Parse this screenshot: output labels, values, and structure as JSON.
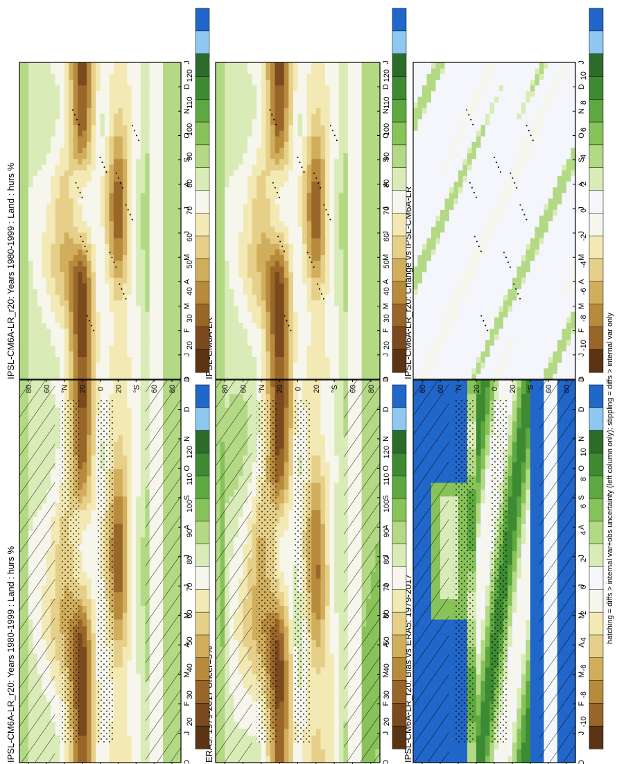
{
  "figure": {
    "footnote": "hatching = diffs > internal var+obs uncertainty (left column only); stippling = diffs > internal var only"
  },
  "colorbars": {
    "absolute": {
      "labels": [
        "120",
        "110",
        "100",
        "90",
        "80",
        "70",
        "60",
        "50",
        "40",
        "30",
        "20"
      ]
    },
    "difference": {
      "labels": [
        "10",
        "8",
        "6",
        "4",
        "2",
        "0",
        "-2",
        "-4",
        "-6",
        "-8",
        "-10"
      ]
    }
  },
  "colors": {
    "absolute": [
      "#2166c9",
      "#8ec8f0",
      "#2d6b2a",
      "#3e8a32",
      "#5da840",
      "#88c35a",
      "#b3d985",
      "#d9ecb8",
      "#f6f6ec",
      "#f3e9b4",
      "#e6d089",
      "#d1ae5c",
      "#b78a3c",
      "#99662a",
      "#7a4a1e",
      "#5a3414"
    ],
    "difference": [
      "#2166c9",
      "#8ec8f0",
      "#2d6b2a",
      "#3e8a32",
      "#5da840",
      "#88c35a",
      "#b3d985",
      "#d9ecb8",
      "#f4f6fb",
      "#f6f6ec",
      "#f3e9b4",
      "#e6d089",
      "#d1ae5c",
      "#b78a3c",
      "#99662a",
      "#5a3414"
    ]
  },
  "panels": [
    {
      "id": "model-left",
      "title": "IPSL-CM6A-LR_r20: Years 1980-1999 : Land : hurs %",
      "kind": "absolute",
      "hatching": true,
      "stippling": "dense"
    },
    {
      "id": "model-right",
      "title": "IPSL-CM6A-LR_r20: Years 1980-1999 : Land : hurs %",
      "kind": "absolute",
      "hatching": false,
      "stippling": "sparse"
    },
    {
      "id": "obs-left",
      "title": "ERA5: 1979-2017 Uncer=5%",
      "kind": "absolute",
      "hatching": true,
      "stippling": "dense"
    },
    {
      "id": "obs-right",
      "title": "IPSL-CM6A-LR",
      "kind": "absolute",
      "hatching": false,
      "stippling": "sparse"
    },
    {
      "id": "bias-left",
      "title": "IPSL-CM6A-LR_r20: Bias vs ERA5: 1979-2017",
      "kind": "difference",
      "hatching": true,
      "stippling": "dense"
    },
    {
      "id": "change-right",
      "title": "IPSL-CM6A-LR_r20: Change vs IPSL-CM6A-LR",
      "kind": "difference",
      "hatching": false,
      "stippling": "sparse"
    }
  ],
  "chart_data": {
    "type": "heatmap",
    "description_axes": {
      "month_ticks": [
        "D",
        "J",
        "F",
        "M",
        "A",
        "M",
        "J",
        "J",
        "A",
        "S",
        "O",
        "N",
        "D",
        "J"
      ],
      "lat_ticks": [
        "80",
        "60",
        "°N",
        "20",
        "0",
        "20",
        "°S",
        "60",
        "80"
      ],
      "lat_range": [
        -90,
        90
      ]
    },
    "variable": "hurs",
    "units": "%",
    "absolute_levels": [
      120,
      110,
      100,
      90,
      80,
      70,
      60,
      50,
      40,
      30,
      20
    ],
    "difference_levels": [
      10,
      8,
      6,
      4,
      2,
      0,
      -2,
      -4,
      -6,
      -8,
      -10
    ],
    "zonal_mean_hurs_by_month": {
      "months": [
        "J",
        "F",
        "M",
        "A",
        "M",
        "J",
        "J",
        "A",
        "S",
        "O",
        "N",
        "D"
      ],
      "rows": [
        {
          "lat": 80,
          "values": [
            82,
            82,
            81,
            80,
            78,
            76,
            75,
            76,
            78,
            80,
            81,
            82
          ]
        },
        {
          "lat": 60,
          "values": [
            80,
            78,
            74,
            70,
            66,
            68,
            70,
            72,
            74,
            78,
            80,
            81
          ]
        },
        {
          "lat": 40,
          "values": [
            74,
            70,
            64,
            58,
            54,
            55,
            56,
            58,
            62,
            68,
            72,
            75
          ]
        },
        {
          "lat": 20,
          "values": [
            32,
            28,
            26,
            28,
            38,
            56,
            70,
            72,
            66,
            48,
            38,
            34
          ]
        },
        {
          "lat": 0,
          "values": [
            74,
            74,
            76,
            78,
            80,
            78,
            74,
            72,
            74,
            78,
            80,
            78
          ]
        },
        {
          "lat": -20,
          "values": [
            66,
            68,
            66,
            58,
            48,
            40,
            36,
            36,
            40,
            48,
            56,
            62
          ]
        },
        {
          "lat": -40,
          "values": [
            72,
            72,
            74,
            76,
            78,
            80,
            80,
            80,
            78,
            74,
            72,
            72
          ]
        },
        {
          "lat": -60,
          "values": [
            88,
            88,
            88,
            88,
            88,
            88,
            88,
            88,
            88,
            88,
            88,
            88
          ]
        },
        {
          "lat": -80,
          "values": [
            88,
            88,
            88,
            88,
            88,
            88,
            88,
            88,
            88,
            88,
            88,
            88
          ]
        }
      ]
    }
  }
}
